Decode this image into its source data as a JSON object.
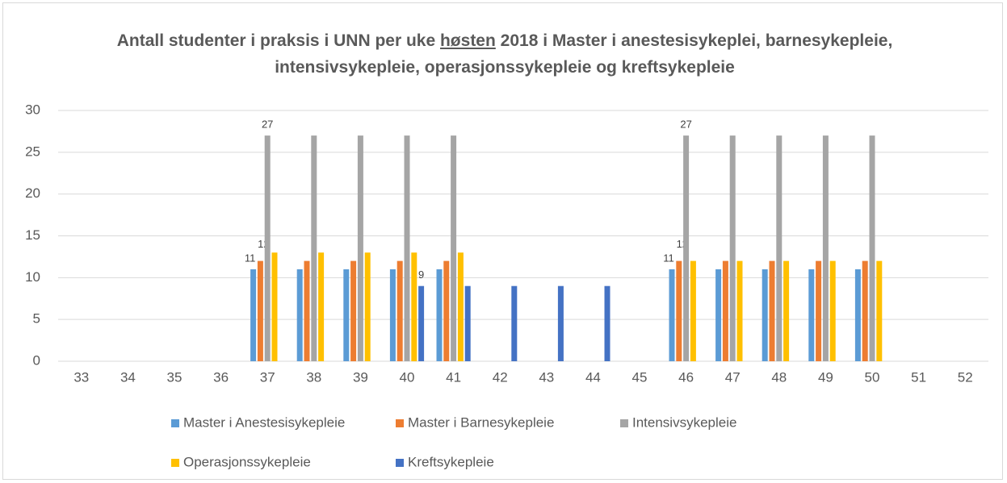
{
  "chart_data": {
    "type": "bar",
    "title": [
      "Antall studenter i praksis i UNN per uke ",
      "høsten",
      " 2018 i Master i anestesisykeplei, barnesykepleie, intensivsykepleie, operasjonssykepleie og kreftsykepleie"
    ],
    "categories": [
      "33",
      "34",
      "35",
      "36",
      "37",
      "38",
      "39",
      "40",
      "41",
      "42",
      "43",
      "44",
      "45",
      "46",
      "47",
      "48",
      "49",
      "50",
      "51",
      "52"
    ],
    "series": [
      {
        "name": "Master i Anestesisykepleie",
        "color": "#5b9bd5",
        "values": [
          null,
          null,
          null,
          null,
          11,
          11,
          11,
          11,
          11,
          null,
          null,
          null,
          null,
          11,
          11,
          11,
          11,
          11,
          null,
          null
        ],
        "value_labels": [
          null,
          null,
          null,
          null,
          11,
          null,
          null,
          null,
          null,
          null,
          null,
          null,
          null,
          11,
          null,
          null,
          null,
          null,
          null,
          null
        ]
      },
      {
        "name": "Master i Barnesykepleie",
        "color": "#ed7d31",
        "values": [
          null,
          null,
          null,
          null,
          12,
          12,
          12,
          12,
          12,
          null,
          null,
          null,
          null,
          12,
          12,
          12,
          12,
          12,
          null,
          null
        ],
        "value_labels": [
          null,
          null,
          null,
          null,
          12,
          null,
          null,
          null,
          null,
          null,
          null,
          null,
          null,
          12,
          null,
          null,
          null,
          null,
          null,
          null
        ]
      },
      {
        "name": "Intensivsykepleie",
        "color": "#a5a5a5",
        "values": [
          null,
          null,
          null,
          null,
          27,
          27,
          27,
          27,
          27,
          null,
          null,
          null,
          null,
          27,
          27,
          27,
          27,
          27,
          null,
          null
        ],
        "value_labels": [
          null,
          null,
          null,
          null,
          27,
          null,
          null,
          null,
          null,
          null,
          null,
          null,
          null,
          27,
          null,
          null,
          null,
          null,
          null,
          null
        ]
      },
      {
        "name": "Operasjonssykepleie",
        "color": "#ffc000",
        "values": [
          null,
          null,
          null,
          null,
          13,
          13,
          13,
          13,
          13,
          null,
          null,
          null,
          null,
          12,
          12,
          12,
          12,
          12,
          null,
          null
        ]
      },
      {
        "name": "Kreftsykepleie",
        "color": "#4472c4",
        "values": [
          null,
          null,
          null,
          null,
          null,
          null,
          null,
          9,
          9,
          9,
          9,
          9,
          null,
          null,
          null,
          null,
          null,
          null,
          null,
          null
        ],
        "value_labels": [
          null,
          null,
          null,
          null,
          null,
          null,
          null,
          9,
          null,
          null,
          null,
          null,
          null,
          null,
          null,
          null,
          null,
          null,
          null,
          null
        ]
      }
    ],
    "ylim": [
      0,
      30
    ],
    "yticks": [
      0,
      5,
      10,
      15,
      20,
      25,
      30
    ],
    "grid": true,
    "legend": "bottom"
  }
}
